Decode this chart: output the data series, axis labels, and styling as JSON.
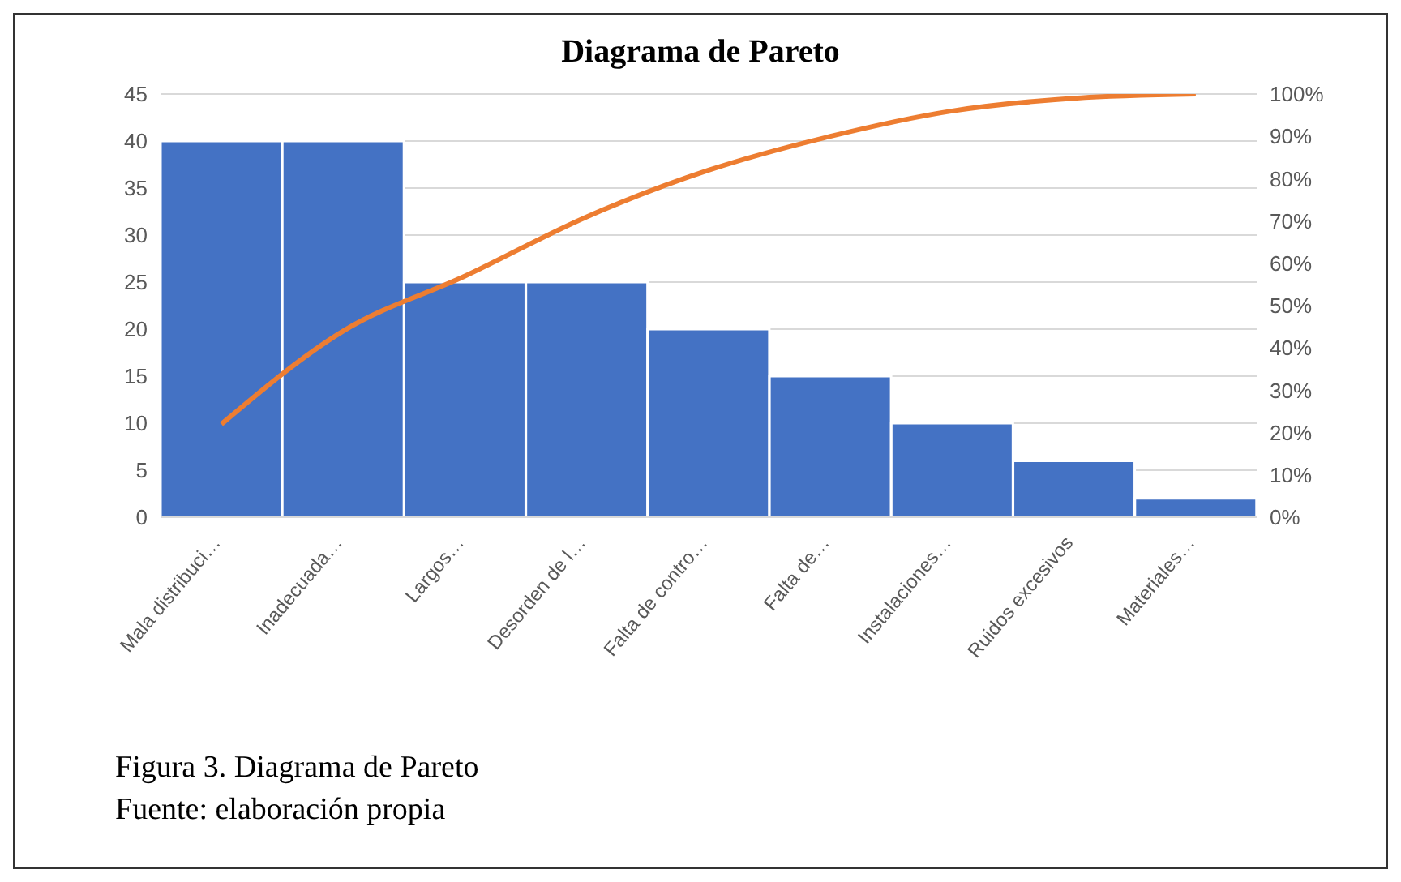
{
  "chart_data": {
    "type": "bar",
    "title": "Diagrama de Pareto",
    "categories": [
      "Mala distribuci…",
      "Inadecuada…",
      "Largos…",
      "Desorden de l…",
      "Falta de contro…",
      "Falta de…",
      "Instalaciones…",
      "Ruidos excesivos",
      "Materiales…"
    ],
    "series": [
      {
        "color": "#4472c4",
        "values": [
          40,
          40,
          25,
          25,
          20,
          15,
          10,
          6,
          2
        ]
      },
      {
        "type": "line",
        "axis": "y2",
        "color": "#ed7d31",
        "marker": "none",
        "values": [
          22,
          44,
          57,
          71,
          82,
          90,
          96,
          99,
          100
        ]
      }
    ],
    "ylim": [
      0,
      45
    ],
    "yticks": [
      0,
      5,
      10,
      15,
      20,
      25,
      30,
      35,
      40,
      45
    ],
    "y2lim": [
      0,
      100
    ],
    "y2ticks": [
      {
        "value": 0,
        "label": "0%"
      },
      {
        "value": 10,
        "label": "10%"
      },
      {
        "value": 20,
        "label": "20%"
      },
      {
        "value": 30,
        "label": "30%"
      },
      {
        "value": 40,
        "label": "40%"
      },
      {
        "value": 50,
        "label": "50%"
      },
      {
        "value": 60,
        "label": "60%"
      },
      {
        "value": 70,
        "label": "70%"
      },
      {
        "value": 80,
        "label": "80%"
      },
      {
        "value": 90,
        "label": "90%"
      },
      {
        "value": 100,
        "label": "100%"
      }
    ],
    "grid": "y",
    "legend": false,
    "annotations": [
      "Figura 3. Diagrama  de Pareto",
      "Fuente: elaboración propia"
    ]
  }
}
